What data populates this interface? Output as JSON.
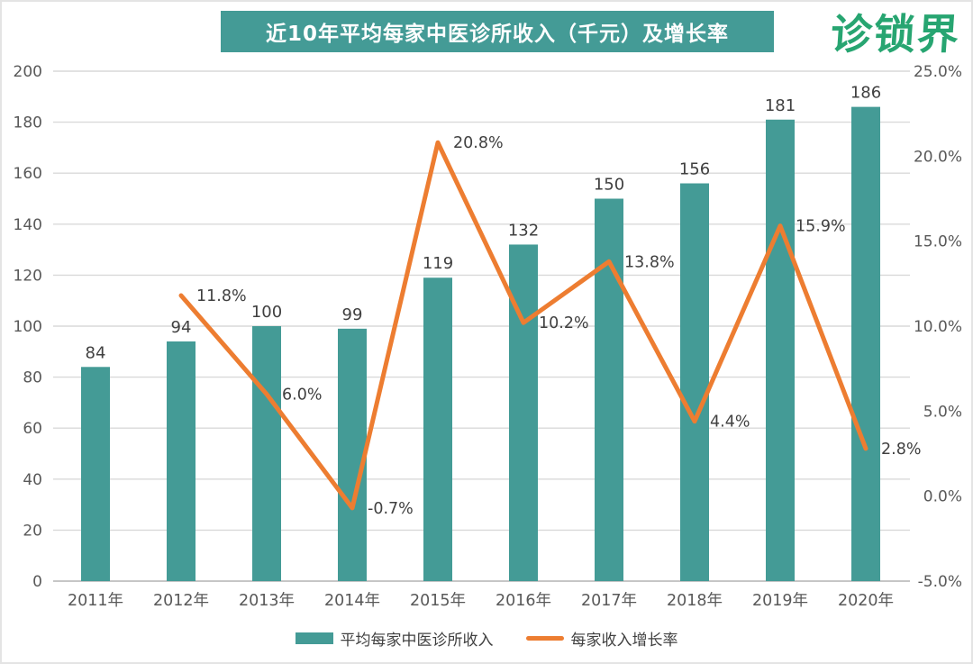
{
  "header": {
    "logo_text": "诊锁界",
    "logo_color": "#27a571",
    "title_bg": "#449b96",
    "title_color": "#ffffff"
  },
  "chart_data": {
    "type": "bar+line combo",
    "title": "近10年平均每家中医诊所收入（千元）及增长率",
    "categories": [
      "2011年",
      "2012年",
      "2013年",
      "2014年",
      "2015年",
      "2016年",
      "2017年",
      "2018年",
      "2019年",
      "2020年"
    ],
    "series": [
      {
        "name": "平均每家中医诊所收入",
        "type": "bar",
        "axis": "left",
        "color": "#449b96",
        "values": [
          84,
          94,
          100,
          99,
          119,
          132,
          150,
          156,
          181,
          186
        ],
        "labels": [
          "84",
          "94",
          "100",
          "99",
          "119",
          "132",
          "150",
          "156",
          "181",
          "186"
        ]
      },
      {
        "name": "每家收入增长率",
        "type": "line",
        "axis": "right",
        "color": "#ed7d31",
        "values": [
          null,
          11.8,
          6.0,
          -0.7,
          20.8,
          10.2,
          13.8,
          4.4,
          15.9,
          2.8
        ],
        "labels": [
          "",
          "11.8%",
          "6.0%",
          "-0.7%",
          "20.8%",
          "10.2%",
          "13.8%",
          "4.4%",
          "15.9%",
          "2.8%"
        ]
      }
    ],
    "left_axis": {
      "min": 0,
      "max": 200,
      "step": 20,
      "ticks": [
        "0",
        "20",
        "40",
        "60",
        "80",
        "100",
        "120",
        "140",
        "160",
        "180",
        "200"
      ]
    },
    "right_axis": {
      "min": -5,
      "max": 25,
      "step": 5,
      "ticks": [
        "-5.0%",
        "0.0%",
        "5.0%",
        "10.0%",
        "15.0%",
        "20.0%",
        "25.0%"
      ]
    },
    "grid": true,
    "legend_position": "bottom",
    "colors": {
      "gridline": "#d9d9d9",
      "baseline": "#c6c6c6",
      "tick_text": "#595959",
      "data_label": "#404040"
    }
  }
}
